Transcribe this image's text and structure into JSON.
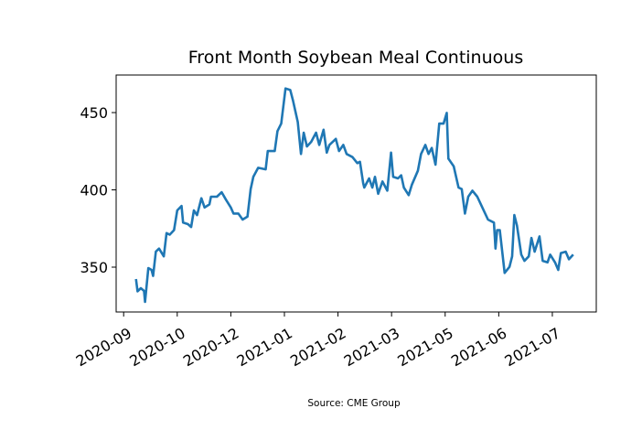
{
  "chart_data": {
    "type": "line",
    "title": "Front Month Soybean Meal Continuous",
    "source": "Source: CME Group",
    "xlabel": "",
    "ylabel": "",
    "x_units": "tick index (0 = first x tick label, 8 = last)",
    "xlim": [
      -0.14,
      8.82
    ],
    "ylim": [
      321,
      474.3
    ],
    "x_ticks": [
      {
        "pos": 0,
        "label": "2020-09"
      },
      {
        "pos": 1,
        "label": "2020-10"
      },
      {
        "pos": 2,
        "label": "2020-12"
      },
      {
        "pos": 3,
        "label": "2021-01"
      },
      {
        "pos": 4,
        "label": "2021-02"
      },
      {
        "pos": 5,
        "label": "2021-03"
      },
      {
        "pos": 6,
        "label": "2021-05"
      },
      {
        "pos": 7,
        "label": "2021-06"
      },
      {
        "pos": 8,
        "label": "2021-07"
      }
    ],
    "y_ticks": [
      350,
      400,
      450
    ],
    "grid": false,
    "series": [
      {
        "name": "Soybean Meal",
        "color": "#1f77b4",
        "points": [
          [
            0.23,
            342.3
          ],
          [
            0.26,
            334.4
          ],
          [
            0.32,
            336.4
          ],
          [
            0.38,
            334.6
          ],
          [
            0.4,
            327.5
          ],
          [
            0.46,
            349.4
          ],
          [
            0.52,
            348.2
          ],
          [
            0.55,
            344.3
          ],
          [
            0.6,
            360
          ],
          [
            0.66,
            362
          ],
          [
            0.75,
            357
          ],
          [
            0.8,
            372
          ],
          [
            0.86,
            371
          ],
          [
            0.94,
            374
          ],
          [
            1.0,
            386.7
          ],
          [
            1.08,
            389.6
          ],
          [
            1.11,
            378.8
          ],
          [
            1.2,
            377.8
          ],
          [
            1.26,
            376
          ],
          [
            1.31,
            386.7
          ],
          [
            1.37,
            383.7
          ],
          [
            1.45,
            394.6
          ],
          [
            1.51,
            388.6
          ],
          [
            1.6,
            390.6
          ],
          [
            1.63,
            395.6
          ],
          [
            1.74,
            395.6
          ],
          [
            1.83,
            398.5
          ],
          [
            1.91,
            393.6
          ],
          [
            2.0,
            388.6
          ],
          [
            2.05,
            384.7
          ],
          [
            2.14,
            384.7
          ],
          [
            2.22,
            380.8
          ],
          [
            2.31,
            382.7
          ],
          [
            2.37,
            400.5
          ],
          [
            2.42,
            408.4
          ],
          [
            2.51,
            414.3
          ],
          [
            2.65,
            413.3
          ],
          [
            2.69,
            425.1
          ],
          [
            2.82,
            425.1
          ],
          [
            2.87,
            438
          ],
          [
            2.94,
            442.9
          ],
          [
            3.02,
            465.6
          ],
          [
            3.11,
            464.6
          ],
          [
            3.16,
            457.7
          ],
          [
            3.25,
            443.9
          ],
          [
            3.31,
            423.2
          ],
          [
            3.36,
            437
          ],
          [
            3.42,
            428.1
          ],
          [
            3.5,
            431.1
          ],
          [
            3.59,
            437
          ],
          [
            3.65,
            429.1
          ],
          [
            3.73,
            438.9
          ],
          [
            3.79,
            424.1
          ],
          [
            3.84,
            429.1
          ],
          [
            3.96,
            433
          ],
          [
            4.02,
            425.1
          ],
          [
            4.1,
            429.1
          ],
          [
            4.16,
            423.2
          ],
          [
            4.27,
            421.2
          ],
          [
            4.36,
            417.3
          ],
          [
            4.41,
            418.2
          ],
          [
            4.47,
            404.4
          ],
          [
            4.49,
            401.5
          ],
          [
            4.58,
            407.4
          ],
          [
            4.64,
            401.5
          ],
          [
            4.69,
            408.4
          ],
          [
            4.75,
            397.5
          ],
          [
            4.83,
            405.4
          ],
          [
            4.92,
            399.5
          ],
          [
            4.99,
            424.1
          ],
          [
            5.03,
            408.4
          ],
          [
            5.12,
            407.4
          ],
          [
            5.18,
            409.4
          ],
          [
            5.23,
            401.5
          ],
          [
            5.32,
            396.6
          ],
          [
            5.38,
            403.4
          ],
          [
            5.49,
            412.3
          ],
          [
            5.55,
            423.2
          ],
          [
            5.63,
            429.1
          ],
          [
            5.69,
            423.2
          ],
          [
            5.75,
            427.1
          ],
          [
            5.82,
            416.3
          ],
          [
            5.89,
            442.9
          ],
          [
            5.97,
            442.9
          ],
          [
            6.03,
            449.8
          ],
          [
            6.06,
            420.2
          ],
          [
            6.16,
            415.3
          ],
          [
            6.25,
            401.5
          ],
          [
            6.31,
            400.5
          ],
          [
            6.37,
            384.7
          ],
          [
            6.43,
            395.6
          ],
          [
            6.51,
            399.5
          ],
          [
            6.6,
            395.6
          ],
          [
            6.68,
            389.6
          ],
          [
            6.8,
            380.8
          ],
          [
            6.91,
            378.8
          ],
          [
            6.94,
            362
          ],
          [
            6.97,
            374
          ],
          [
            7.02,
            374
          ],
          [
            7.11,
            346.3
          ],
          [
            7.2,
            350.2
          ],
          [
            7.25,
            357
          ],
          [
            7.29,
            383.7
          ],
          [
            7.34,
            376.8
          ],
          [
            7.42,
            358.1
          ],
          [
            7.48,
            354.1
          ],
          [
            7.56,
            357
          ],
          [
            7.61,
            368.9
          ],
          [
            7.67,
            360
          ],
          [
            7.76,
            369.9
          ],
          [
            7.82,
            354.1
          ],
          [
            7.91,
            353.1
          ],
          [
            7.96,
            358.1
          ],
          [
            8.05,
            353.1
          ],
          [
            8.11,
            348.2
          ],
          [
            8.16,
            359.1
          ],
          [
            8.25,
            360
          ],
          [
            8.31,
            355.1
          ],
          [
            8.39,
            358.1
          ]
        ]
      }
    ]
  }
}
